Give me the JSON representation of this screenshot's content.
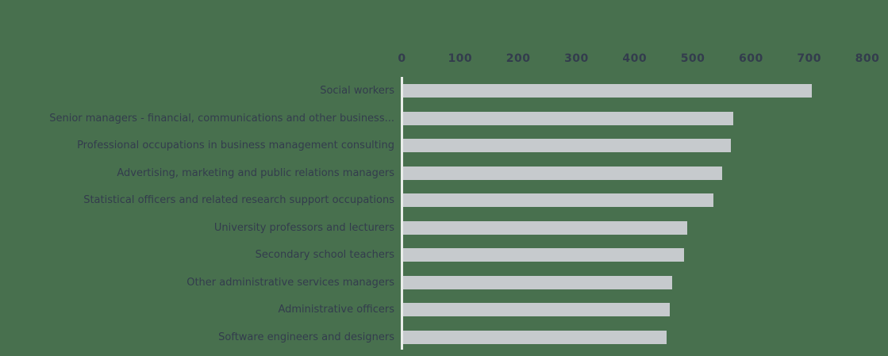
{
  "chart_data": {
    "type": "bar",
    "orientation": "horizontal",
    "title": "",
    "xlabel": "",
    "ylabel": "",
    "categories": [
      "Social workers",
      "Senior managers - financial, communications and other business...",
      "Professional occupations in business management consulting",
      "Advertising, marketing and public relations managers",
      "Statistical officers and related research support occupations",
      "University professors and lecturers",
      "Secondary school teachers",
      "Other administrative services managers",
      "Administrative officers",
      "Software engineers and designers"
    ],
    "values": [
      705,
      570,
      565,
      550,
      535,
      490,
      485,
      465,
      460,
      455
    ],
    "x_ticks": [
      "0",
      "100",
      "200",
      "300",
      "400",
      "500",
      "600",
      "700",
      "800"
    ],
    "xlim": [
      0,
      800
    ],
    "grid": false,
    "legend": false,
    "axis_position": "top",
    "colors": {
      "background": "#48704e",
      "bar": "#c6cacd",
      "text": "#333c4d",
      "axis_line": "#e9edea"
    }
  }
}
